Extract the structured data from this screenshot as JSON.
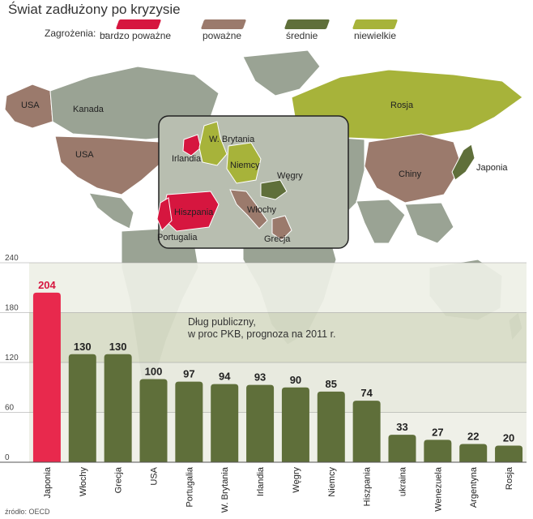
{
  "title": "Świat zadłużony po kryzysie",
  "legend": {
    "label": "Zagrożenia:",
    "items": [
      {
        "label": "bardzo poważne",
        "color": "#d6163f"
      },
      {
        "label": "poważne",
        "color": "#9b7a6c"
      },
      {
        "label": "średnie",
        "color": "#5f6f3a"
      },
      {
        "label": "niewielkie",
        "color": "#a7b33a"
      }
    ]
  },
  "map_labels": {
    "usa_alaska": "USA",
    "kanada": "Kanada",
    "usa": "USA",
    "rosja": "Rosja",
    "chiny": "Chiny",
    "japonia": "Japonia",
    "wbrytania": "W. Brytania",
    "irlandia": "Irlandia",
    "niemcy": "Niemcy",
    "wegry": "Węgry",
    "hiszpania": "Hiszpania",
    "portugalia": "Portugalia",
    "wlochy": "Włochy",
    "grecja": "Grecja"
  },
  "note": "Dług publiczny,\nw proc PKB, prognoza na 2011 r.",
  "source": "źródło: OECD",
  "chart_data": {
    "type": "bar",
    "title": "Dług publiczny, w proc PKB, prognoza na 2011 r.",
    "categories": [
      "Japonia",
      "Włochy",
      "Grecja",
      "USA",
      "Portugalia",
      "W. Brytania",
      "Irlandia",
      "Węgry",
      "Niemcy",
      "Hiszpania",
      "ukraina",
      "Wenezuela",
      "Argentyna",
      "Rosja"
    ],
    "values": [
      204,
      130,
      130,
      100,
      97,
      94,
      93,
      90,
      85,
      74,
      33,
      27,
      22,
      20
    ],
    "colors": [
      "#e8294d",
      "#5f6f3a",
      "#5f6f3a",
      "#5f6f3a",
      "#5f6f3a",
      "#5f6f3a",
      "#5f6f3a",
      "#5f6f3a",
      "#5f6f3a",
      "#5f6f3a",
      "#5f6f3a",
      "#5f6f3a",
      "#5f6f3a",
      "#5f6f3a"
    ],
    "value_label_colors": [
      "#d6163f",
      "#222222",
      "#222222",
      "#222222",
      "#222222",
      "#222222",
      "#222222",
      "#222222",
      "#222222",
      "#222222",
      "#222222",
      "#222222",
      "#222222",
      "#222222"
    ],
    "yticks": [
      0,
      60,
      120,
      180,
      240
    ],
    "ylim": [
      0,
      240
    ],
    "grid": true
  }
}
